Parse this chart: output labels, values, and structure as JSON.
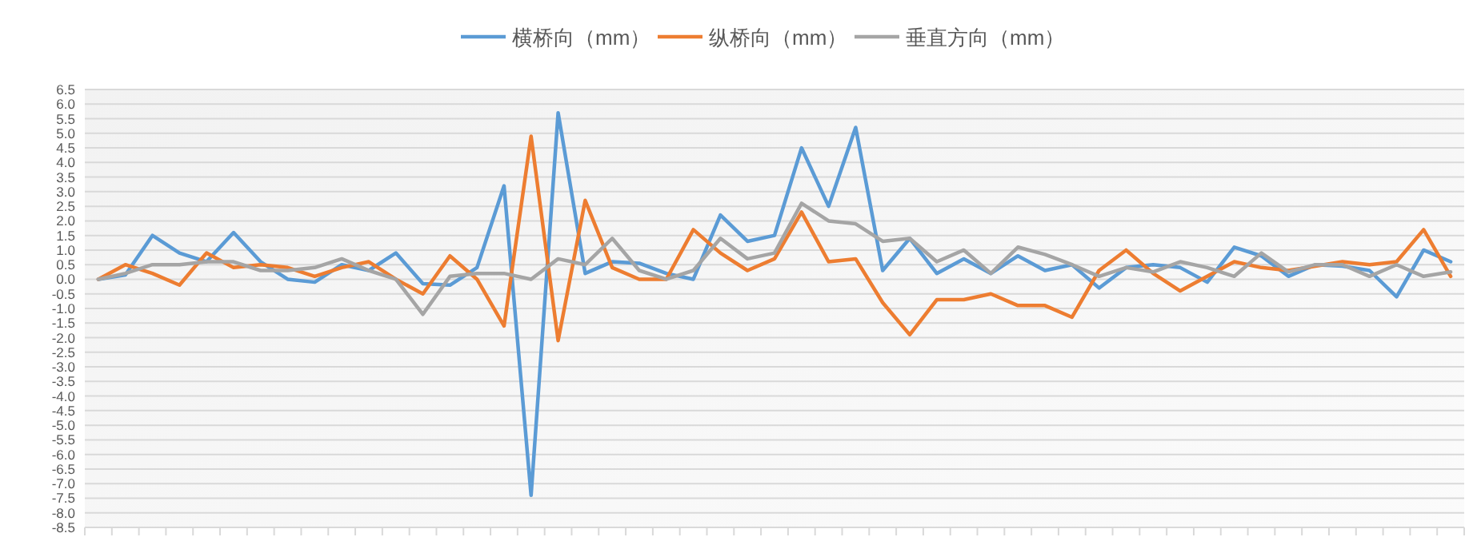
{
  "chart_data": {
    "type": "line",
    "categories": [
      null,
      null,
      null,
      null,
      null,
      null,
      null,
      null,
      null,
      null,
      null,
      null,
      null,
      null,
      null,
      null,
      null,
      null,
      null,
      null,
      null,
      null,
      null,
      null,
      null,
      null,
      null,
      null,
      null,
      null,
      null,
      null,
      null,
      null,
      null,
      null,
      null,
      null,
      null,
      null,
      null,
      null,
      null,
      null,
      null,
      null,
      null,
      null,
      null,
      null,
      null
    ],
    "series": [
      {
        "name": "横桥向（mm）",
        "color": "#5b9bd5",
        "values": [
          0,
          0.15,
          1.5,
          0.9,
          0.6,
          1.6,
          0.6,
          0,
          -0.1,
          0.5,
          0.3,
          0.9,
          -0.15,
          -0.2,
          0.4,
          3.2,
          -7.4,
          5.7,
          0.2,
          0.6,
          0.55,
          0.2,
          0,
          2.2,
          1.3,
          1.5,
          4.5,
          2.5,
          5.2,
          0.3,
          1.4,
          0.2,
          0.7,
          0.2,
          0.8,
          0.3,
          0.5,
          -0.3,
          0.4,
          0.5,
          0.4,
          -0.1,
          1.1,
          0.8,
          0.1,
          0.5,
          0.45,
          0.3,
          -0.6,
          1.0,
          0.6
        ]
      },
      {
        "name": "纵桥向（mm）",
        "color": "#ed7d31",
        "values": [
          0,
          0.5,
          0.2,
          -0.2,
          0.9,
          0.4,
          0.5,
          0.4,
          0.1,
          0.4,
          0.6,
          0,
          -0.5,
          0.8,
          0,
          -1.6,
          4.9,
          -2.1,
          2.7,
          0.4,
          0,
          0,
          1.7,
          0.9,
          0.3,
          0.7,
          2.3,
          0.6,
          0.7,
          -0.8,
          -1.9,
          -0.7,
          -0.7,
          -0.5,
          -0.9,
          -0.9,
          -1.3,
          0.3,
          1.0,
          0.2,
          -0.4,
          0.1,
          0.6,
          0.4,
          0.3,
          0.45,
          0.6,
          0.5,
          0.6,
          1.7,
          0.1
        ]
      },
      {
        "name": "垂直方向（mm）",
        "color": "#a5a5a5",
        "values": [
          0,
          0.2,
          0.5,
          0.5,
          0.6,
          0.6,
          0.3,
          0.3,
          0.4,
          0.7,
          0.3,
          0,
          -1.2,
          0.1,
          0.2,
          0.2,
          0,
          0.7,
          0.5,
          1.4,
          0.3,
          0,
          0.3,
          1.4,
          0.7,
          0.9,
          2.6,
          2.0,
          1.9,
          1.3,
          1.4,
          0.6,
          1.0,
          0.2,
          1.1,
          0.85,
          0.5,
          0.1,
          0.4,
          0.25,
          0.6,
          0.4,
          0.1,
          0.9,
          0.25,
          0.5,
          0.5,
          0.1,
          0.5,
          0.1,
          0.25
        ]
      }
    ],
    "ylim": [
      -8.5,
      6.5
    ],
    "yticks": [
      6.5,
      {
        "value": 6,
        "label": "6.0"
      },
      5.5,
      {
        "value": 5,
        "label": "5.0"
      },
      4.5,
      {
        "value": 4,
        "label": "4.0"
      },
      3.5,
      {
        "value": 3,
        "label": "3.0"
      },
      2.5,
      {
        "value": 2,
        "label": "2.0"
      },
      1.5,
      {
        "value": 1,
        "label": "1.0"
      },
      0.5,
      {
        "value": 0,
        "label": "0.0"
      },
      -0.5,
      {
        "value": -1,
        "label": "-1.0"
      },
      -1.5,
      {
        "value": -2,
        "label": "-2.0"
      },
      -2.5,
      {
        "value": -3,
        "label": "-3.0"
      },
      -3.5,
      {
        "value": -4,
        "label": "-4.0"
      },
      -4.5,
      {
        "value": -5,
        "label": "-5.0"
      },
      -5.5,
      {
        "value": -6,
        "label": "-6.0"
      },
      -6.5,
      {
        "value": -7,
        "label": "-7.0"
      },
      -7.5,
      {
        "value": -8,
        "label": "-8.0"
      },
      -8.5
    ],
    "grid": "y",
    "legend": "top",
    "marker": "none",
    "line_style": "solid"
  }
}
